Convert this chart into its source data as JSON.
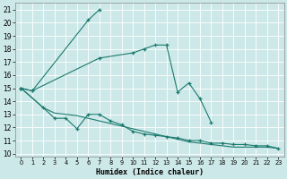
{
  "xlabel": "Humidex (Indice chaleur)",
  "background_color": "#cde8e8",
  "grid_color": "#b0d4d4",
  "line_color": "#1a7a6e",
  "xlim": [
    -0.5,
    23.5
  ],
  "ylim": [
    9.8,
    21.5
  ],
  "yticks": [
    10,
    11,
    12,
    13,
    14,
    15,
    16,
    17,
    18,
    19,
    20,
    21
  ],
  "xticks": [
    0,
    1,
    2,
    3,
    4,
    5,
    6,
    7,
    8,
    9,
    10,
    11,
    12,
    13,
    14,
    15,
    16,
    17,
    18,
    19,
    20,
    21,
    22,
    23
  ],
  "line1_x": [
    0,
    1,
    6,
    7
  ],
  "line1_y": [
    15.0,
    14.8,
    20.2,
    21.0
  ],
  "line2_x": [
    0,
    1,
    7,
    10,
    11,
    12,
    13,
    14,
    15,
    16,
    17
  ],
  "line2_y": [
    15.0,
    14.8,
    17.3,
    17.7,
    18.0,
    18.3,
    18.3,
    14.7,
    15.4,
    14.2,
    12.4
  ],
  "line3_x": [
    0,
    2,
    3,
    4,
    5,
    6,
    7,
    8,
    9,
    10,
    11,
    12,
    13,
    14,
    15,
    16,
    17,
    18,
    19,
    20,
    21,
    22,
    23
  ],
  "line3_y": [
    15.0,
    13.5,
    12.7,
    12.7,
    11.9,
    13.0,
    13.0,
    12.5,
    12.2,
    11.7,
    11.5,
    11.4,
    11.3,
    11.2,
    11.0,
    11.0,
    10.8,
    10.8,
    10.7,
    10.7,
    10.6,
    10.6,
    10.4
  ],
  "line4_x": [
    0,
    2,
    3,
    4,
    5,
    6,
    7,
    8,
    9,
    10,
    11,
    12,
    13,
    14,
    15,
    16,
    17,
    18,
    19,
    20,
    21,
    22,
    23
  ],
  "line4_y": [
    15.0,
    13.5,
    13.1,
    13.0,
    12.9,
    12.7,
    12.5,
    12.3,
    12.1,
    11.9,
    11.7,
    11.5,
    11.3,
    11.1,
    10.9,
    10.8,
    10.7,
    10.6,
    10.5,
    10.5,
    10.5,
    10.5,
    10.4
  ]
}
